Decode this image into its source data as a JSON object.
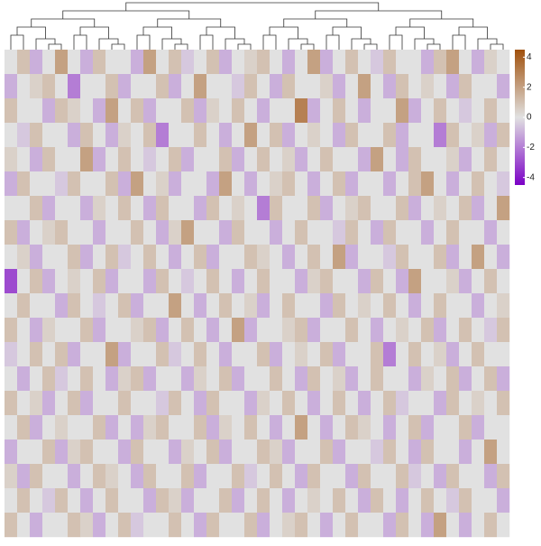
{
  "chart_data": {
    "type": "heatmap",
    "values": [
      [
        0,
        1,
        -1,
        0,
        2,
        0,
        -1,
        1,
        0,
        0,
        -1,
        2,
        0,
        1,
        -0.5,
        0,
        1,
        -1,
        0,
        0.5,
        1,
        0,
        -1,
        0,
        2,
        -1,
        0,
        1,
        0,
        -0.5,
        1,
        0,
        0,
        -1,
        1,
        2,
        0,
        -1,
        0.5,
        0
      ],
      [
        -1,
        0,
        0.5,
        1,
        0,
        -2,
        0,
        0,
        1,
        -1,
        0,
        0,
        1,
        -1,
        0,
        2,
        0,
        0,
        -0.5,
        1,
        0,
        -1,
        1,
        0,
        0,
        0.5,
        -1,
        0,
        2,
        0,
        -1,
        1,
        0,
        0.5,
        0,
        -1,
        1,
        0,
        0,
        -1
      ],
      [
        1,
        0,
        0,
        -1,
        1,
        0.5,
        0,
        -1,
        2,
        0,
        1,
        -1,
        0,
        0,
        1,
        -1,
        0.5,
        0,
        1,
        0,
        -1,
        0,
        0,
        3,
        -1,
        0,
        1,
        0,
        -1,
        0,
        0,
        2,
        -1,
        0,
        1,
        0,
        -0.5,
        0,
        1,
        0
      ],
      [
        0,
        -0.5,
        1,
        0,
        0,
        -1,
        1,
        0,
        -1,
        0.5,
        0,
        1,
        -2,
        0,
        0,
        1,
        0,
        -1,
        0,
        2,
        0,
        1,
        -1,
        0,
        0.5,
        0,
        -1,
        1,
        0,
        0,
        1,
        -1,
        0,
        0,
        -2,
        1,
        0,
        0.5,
        -1,
        1
      ],
      [
        0.5,
        0,
        -1,
        1,
        0,
        0,
        2,
        -1,
        0,
        1,
        0,
        -0.5,
        0,
        1,
        -1,
        0,
        0,
        1,
        -1,
        0,
        1,
        0,
        0.5,
        -1,
        0,
        1,
        0,
        0,
        -1,
        2,
        0,
        -1,
        1,
        0,
        0,
        0.5,
        -1,
        0,
        1,
        0
      ],
      [
        -1,
        1,
        0,
        0,
        -0.5,
        1,
        0,
        0,
        1,
        -1,
        2,
        0,
        0.5,
        -1,
        0,
        0,
        -1,
        2,
        0,
        -1,
        0,
        0.5,
        1,
        0,
        -1,
        0,
        1,
        -1,
        0,
        0,
        -1,
        0,
        1,
        2,
        0,
        -1,
        0,
        1,
        0,
        -0.5
      ],
      [
        0,
        0,
        1,
        -1,
        0,
        0,
        -1,
        0.5,
        0,
        1,
        0,
        -1,
        1,
        0,
        0,
        -1,
        1,
        0,
        0.5,
        0,
        -2,
        1,
        0,
        0,
        1,
        -1,
        0,
        0.5,
        1,
        0,
        0,
        1,
        -1,
        0,
        0.5,
        0,
        1,
        -1,
        0,
        2
      ],
      [
        1,
        -1,
        0,
        0.5,
        1,
        0,
        0,
        -1,
        0,
        0,
        1,
        0,
        -1,
        0.5,
        2,
        0,
        0,
        -1,
        1,
        0,
        0,
        -1,
        0,
        1,
        0,
        0,
        -0.5,
        1,
        0,
        -1,
        1,
        0,
        0,
        -1,
        0,
        1,
        0,
        0,
        -1,
        0
      ],
      [
        0,
        0.5,
        -1,
        0,
        0,
        1,
        -1,
        0,
        1,
        -0.5,
        0,
        1,
        0,
        -1,
        0,
        1,
        -1,
        0,
        0,
        1,
        0.5,
        0,
        -1,
        0,
        1,
        0,
        2,
        -1,
        0,
        0,
        -0.5,
        1,
        0,
        0,
        1,
        -1,
        0,
        2,
        0,
        -1
      ],
      [
        -3,
        0,
        1,
        -1,
        0,
        0.5,
        0,
        1,
        -1,
        0,
        0,
        -1,
        1,
        0,
        -0.5,
        0,
        1,
        0,
        -1,
        0,
        1,
        0,
        0,
        -1,
        0.5,
        1,
        0,
        0,
        -1,
        1,
        0,
        -1,
        2,
        0,
        0,
        0.5,
        -1,
        0,
        1,
        0
      ],
      [
        0,
        1,
        0,
        0,
        -1,
        1,
        0,
        -0.5,
        0,
        1,
        -1,
        0,
        0,
        2,
        0,
        -1,
        0,
        1,
        0,
        0.5,
        -1,
        0,
        1,
        0,
        0,
        -1,
        1,
        0,
        0.5,
        0,
        1,
        0,
        -1,
        0,
        1,
        0,
        0,
        -1,
        0,
        0.5
      ],
      [
        1,
        0,
        -1,
        0.5,
        0,
        0,
        1,
        -1,
        0,
        0,
        0.5,
        1,
        -1,
        0,
        1,
        0,
        -1,
        0,
        2,
        -1,
        0,
        0,
        0.5,
        1,
        -1,
        0,
        0,
        1,
        0,
        -1,
        0,
        0.5,
        0,
        1,
        -1,
        0,
        1,
        0,
        -0.5,
        1
      ],
      [
        -0.5,
        0,
        1,
        0,
        1,
        -1,
        0,
        0,
        2,
        -1,
        0,
        0,
        1,
        -0.5,
        0,
        1,
        0,
        -1,
        0,
        0,
        1,
        -1,
        0,
        0.5,
        0,
        1,
        -1,
        0,
        0,
        1,
        -2,
        0,
        1,
        0,
        0.5,
        -1,
        0,
        1,
        0,
        0
      ],
      [
        0,
        -1,
        0,
        1,
        -0.5,
        0,
        1,
        0,
        -1,
        0.5,
        1,
        -1,
        0,
        0,
        -1,
        0.5,
        0,
        1,
        -1,
        0,
        0,
        1,
        0,
        -1,
        1,
        0,
        0.5,
        -1,
        0,
        1,
        0,
        0,
        -1,
        0.5,
        0,
        1,
        -1,
        0,
        1,
        -1
      ],
      [
        1,
        0,
        0.5,
        -1,
        0,
        1,
        -1,
        0,
        0,
        1,
        0,
        0,
        -0.5,
        1,
        0,
        -1,
        1,
        0,
        0,
        -1,
        0.5,
        0,
        1,
        0,
        -1,
        0,
        1,
        0,
        -1,
        0,
        1,
        -0.5,
        0,
        0,
        -1,
        1,
        0,
        0.5,
        0,
        1
      ],
      [
        0,
        1,
        -1,
        0,
        0.5,
        0,
        0,
        1,
        -1,
        0,
        -1,
        0.5,
        1,
        0,
        0,
        1,
        -1,
        0.5,
        0,
        1,
        0,
        -1,
        0,
        2,
        0,
        -1,
        0,
        1,
        0.5,
        0,
        -1,
        0,
        1,
        -1,
        0,
        0,
        1,
        -1,
        0,
        0
      ],
      [
        -1,
        0,
        0,
        1,
        -1,
        0.5,
        1,
        0,
        0,
        -1,
        1,
        0,
        0,
        -1,
        0.5,
        0,
        1,
        -1,
        0,
        0,
        1,
        0.5,
        -1,
        0,
        0,
        1,
        -1,
        0,
        0,
        -0.5,
        1,
        0,
        -1,
        1,
        0,
        0,
        -1,
        0,
        2,
        0
      ],
      [
        0.5,
        -1,
        1,
        0,
        0,
        -1,
        0,
        1,
        0.5,
        0,
        -1,
        1,
        0,
        0,
        1,
        -1,
        0,
        0,
        1,
        -0.5,
        0,
        1,
        0,
        -1,
        1,
        0,
        0,
        -1,
        1,
        0,
        0,
        1,
        -0.5,
        0,
        -1,
        1,
        0,
        0,
        -1,
        1
      ],
      [
        0,
        1,
        0,
        -0.5,
        1,
        0,
        -1,
        0,
        1,
        0,
        0,
        -1,
        1,
        0.5,
        -1,
        0,
        0,
        1,
        -1,
        0,
        1,
        0,
        -1,
        0,
        0.5,
        0,
        1,
        0,
        -1,
        1,
        0,
        -1,
        0,
        1,
        0,
        -0.5,
        1,
        0,
        0,
        -1
      ],
      [
        1,
        0,
        -1,
        0,
        0,
        1,
        0.5,
        -1,
        0,
        1,
        -0.5,
        0,
        0,
        1,
        0,
        -1,
        1,
        0,
        0,
        1,
        -1,
        0,
        0.5,
        1,
        0,
        -1,
        0,
        1,
        0,
        0,
        -1,
        1,
        0,
        -1,
        2,
        0,
        -1,
        0,
        1,
        0
      ]
    ],
    "colors": [
      "#7b00c6",
      "#e1e1e1",
      "#a0500c"
    ],
    "clim": [
      -4.5,
      4.5
    ],
    "cticks": [
      -4,
      -2,
      0,
      2,
      4
    ]
  }
}
